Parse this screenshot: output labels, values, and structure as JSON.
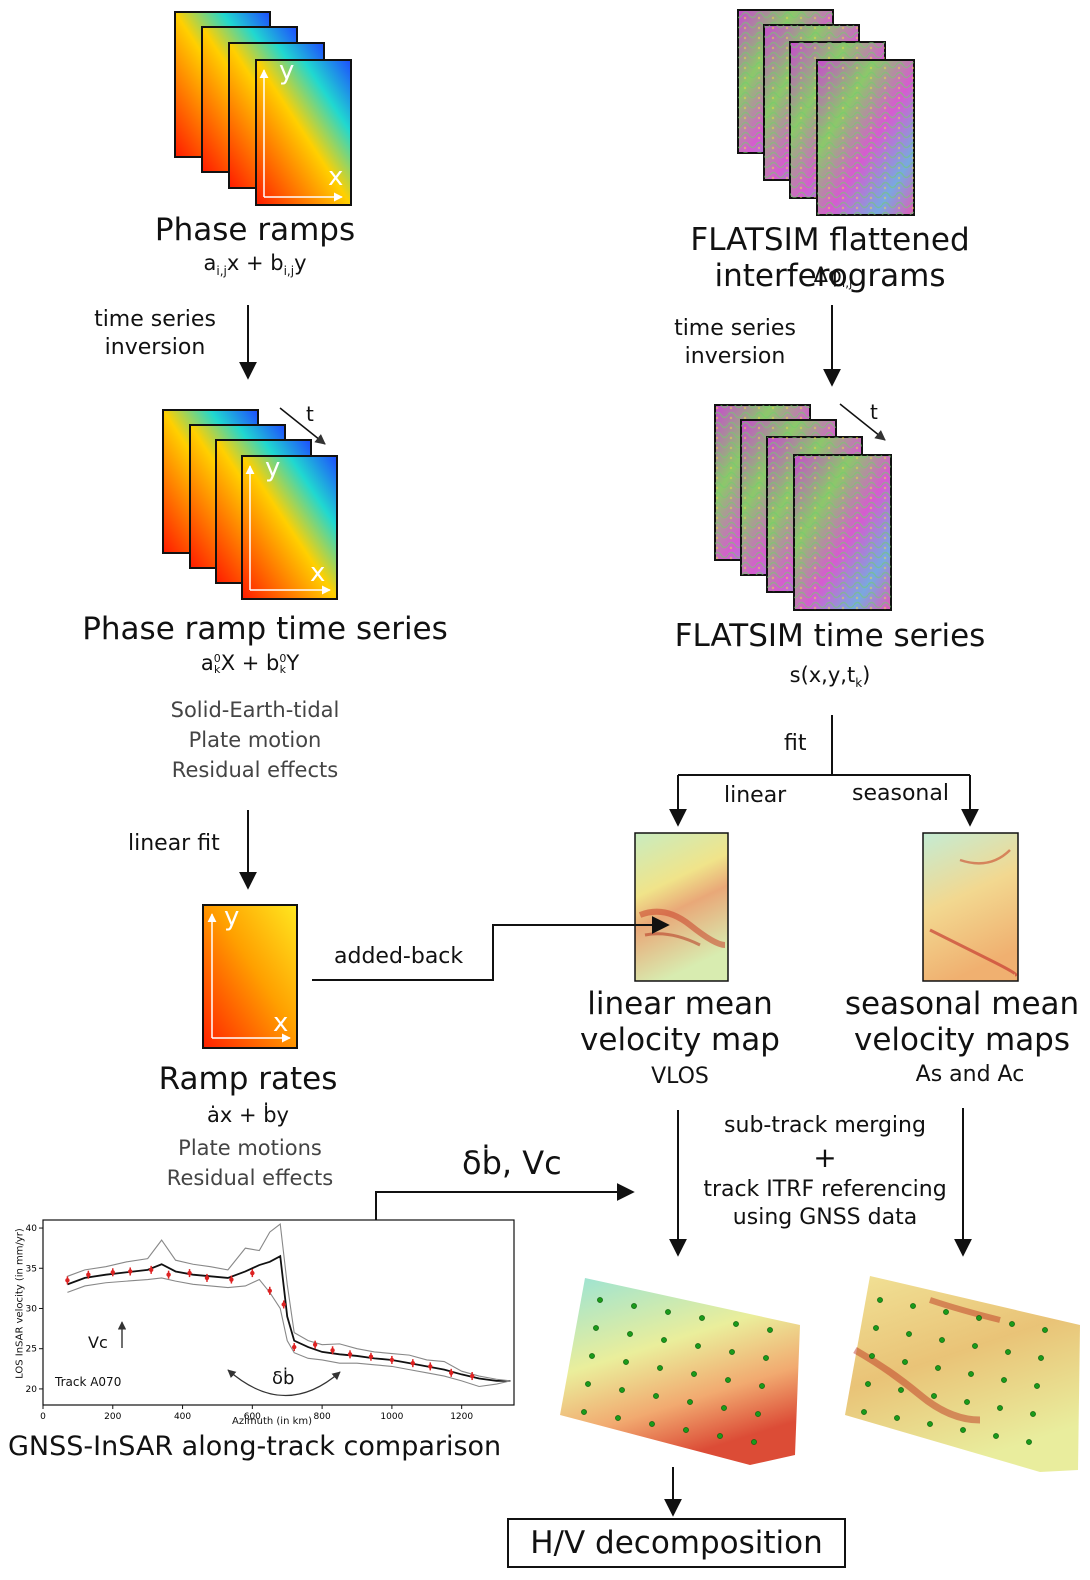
{
  "colors": {
    "ramp_start": "#ff1a00",
    "ramp_mid": "#ffd000",
    "ramp_end": "#1e6cff",
    "rate_start": "#ff2a00",
    "rate_end": "#ffe020",
    "ifg_magenta": "#d23fd6",
    "ifg_green": "#7ccf6a",
    "vel_yellow": "#e8ec9a",
    "vel_red": "#c83020",
    "gnss_dot": "#1a9a1a",
    "arrow": "#111111"
  },
  "left": {
    "phase_ramps": {
      "title": "Phase ramps",
      "formula": {
        "a": "a",
        "a_sub": "i,j",
        "mid": "x + b",
        "b_sub": "i,j",
        "end": "y"
      },
      "axis_y": "y",
      "axis_x": "x"
    },
    "inversion_label_line1": "time series",
    "inversion_label_line2": "inversion",
    "ramp_series": {
      "title": "Phase ramp time series",
      "formula": {
        "a": "a",
        "a_sup": "0",
        "a_sub": "k",
        "mid": "X + b",
        "b_sup": "0",
        "b_sub": "k",
        "end": "Y"
      },
      "time_axis": "t",
      "axis_y": "y",
      "axis_x": "x",
      "effects": [
        "Solid-Earth-tidal",
        "Plate motion",
        "Residual effects"
      ]
    },
    "linear_fit_label": "linear fit",
    "ramp_rates": {
      "title": "Ramp rates",
      "formula": "ȧx + ḃy",
      "axis_y": "y",
      "axis_x": "x",
      "effects": [
        "Plate motions",
        "Residual effects"
      ]
    },
    "added_back_label": "added-back",
    "delta_label": "δḃ, Vc"
  },
  "right": {
    "ifg": {
      "title": "FLATSIM flattened interferograms",
      "formula": {
        "main": "Δφ",
        "sub": "i,j"
      }
    },
    "inversion_label_line1": "time series",
    "inversion_label_line2": "inversion",
    "ts": {
      "title": "FLATSIM time series",
      "formula": {
        "main": "s(x,y,t",
        "sub": "k",
        "end": ")"
      },
      "time_axis": "t"
    },
    "fit_label": "fit",
    "linear_label": "linear",
    "seasonal_label": "seasonal",
    "linear_map": {
      "title_line1": "linear mean",
      "title_line2": "velocity map",
      "subtitle": "VLOS"
    },
    "seasonal_map": {
      "title_line1": "seasonal mean",
      "title_line2": "velocity maps",
      "subtitle": "As and Ac"
    },
    "merge": {
      "line1": "sub-track merging",
      "plus": "+",
      "line2": "track ITRF referencing",
      "line3": "using GNSS data"
    },
    "hv_label": "H/V decomposition"
  },
  "gnss_plot": {
    "caption": "GNSS-InSAR along-track comparison",
    "track_label": "Track A070",
    "vc_label": "Vc",
    "db_label": "δḃ",
    "chart_data": {
      "type": "line",
      "xlabel": "Azimuth (in km)",
      "ylabel": "LOS InSAR velocity (in mm/yr)",
      "xlim": [
        0,
        1350
      ],
      "ylim": [
        18,
        41
      ],
      "xticks": [
        0,
        200,
        400,
        600,
        800,
        1000,
        1200
      ],
      "yticks": [
        20,
        25,
        30,
        35,
        40
      ],
      "series": [
        {
          "values_x": [
            70,
            120,
            180,
            240,
            300,
            340,
            380,
            430,
            480,
            530,
            580,
            620,
            650,
            680,
            700,
            720,
            760,
            800,
            850,
            900,
            950,
            1000,
            1050,
            1100,
            1150,
            1200,
            1250,
            1300,
            1340
          ],
          "values_y": [
            33,
            33.8,
            34.2,
            34.5,
            34.8,
            35.5,
            34.6,
            34.2,
            34.0,
            33.8,
            34.6,
            35.4,
            35.8,
            36.5,
            29,
            26,
            25.2,
            24.6,
            24.3,
            24.1,
            23.8,
            23.6,
            23.2,
            22.8,
            22.4,
            21.8,
            21.3,
            21.0,
            21.0
          ]
        },
        {
          "values_x": [
            70,
            120,
            180,
            240,
            300,
            340,
            380,
            430,
            480,
            530,
            580,
            620,
            650,
            680,
            700,
            720,
            760,
            800,
            850,
            900,
            950,
            1000,
            1050,
            1100,
            1150,
            1200,
            1250,
            1300,
            1340
          ],
          "values_y": [
            34,
            34.8,
            35.2,
            35.8,
            36.2,
            38.5,
            36.0,
            35.5,
            35.2,
            34.8,
            37.5,
            37.2,
            39.5,
            40.5,
            33,
            27,
            26,
            25.5,
            25.6,
            25.0,
            24.6,
            24.4,
            24.2,
            23.6,
            23.4,
            22.2,
            21.6,
            21.2,
            21.0
          ]
        },
        {
          "values_x": [
            70,
            120,
            180,
            240,
            300,
            340,
            380,
            430,
            480,
            530,
            580,
            620,
            650,
            680,
            700,
            720,
            760,
            800,
            850,
            900,
            950,
            1000,
            1050,
            1100,
            1150,
            1200,
            1250,
            1300,
            1340
          ],
          "values_y": [
            32,
            32.8,
            33.2,
            33.4,
            33.6,
            33.8,
            33.4,
            33.0,
            32.8,
            32.6,
            32.8,
            33.6,
            32.0,
            30.0,
            26,
            24.5,
            23.8,
            23.6,
            23.2,
            23.2,
            23.0,
            22.8,
            22.4,
            22.0,
            21.6,
            21.0,
            20.3,
            20.6,
            21.0
          ]
        }
      ],
      "gnss_x": [
        70,
        130,
        200,
        250,
        310,
        360,
        420,
        470,
        540,
        600,
        650,
        690,
        720,
        780,
        830,
        880,
        940,
        1000,
        1060,
        1110,
        1170,
        1230
      ],
      "gnss_y": [
        33.5,
        34.2,
        34.5,
        34.6,
        34.8,
        34.2,
        34.4,
        33.8,
        33.6,
        34.4,
        32.2,
        30.5,
        25.2,
        25.5,
        24.8,
        24.3,
        24.0,
        23.6,
        23.2,
        22.8,
        22.0,
        21.6
      ]
    }
  }
}
